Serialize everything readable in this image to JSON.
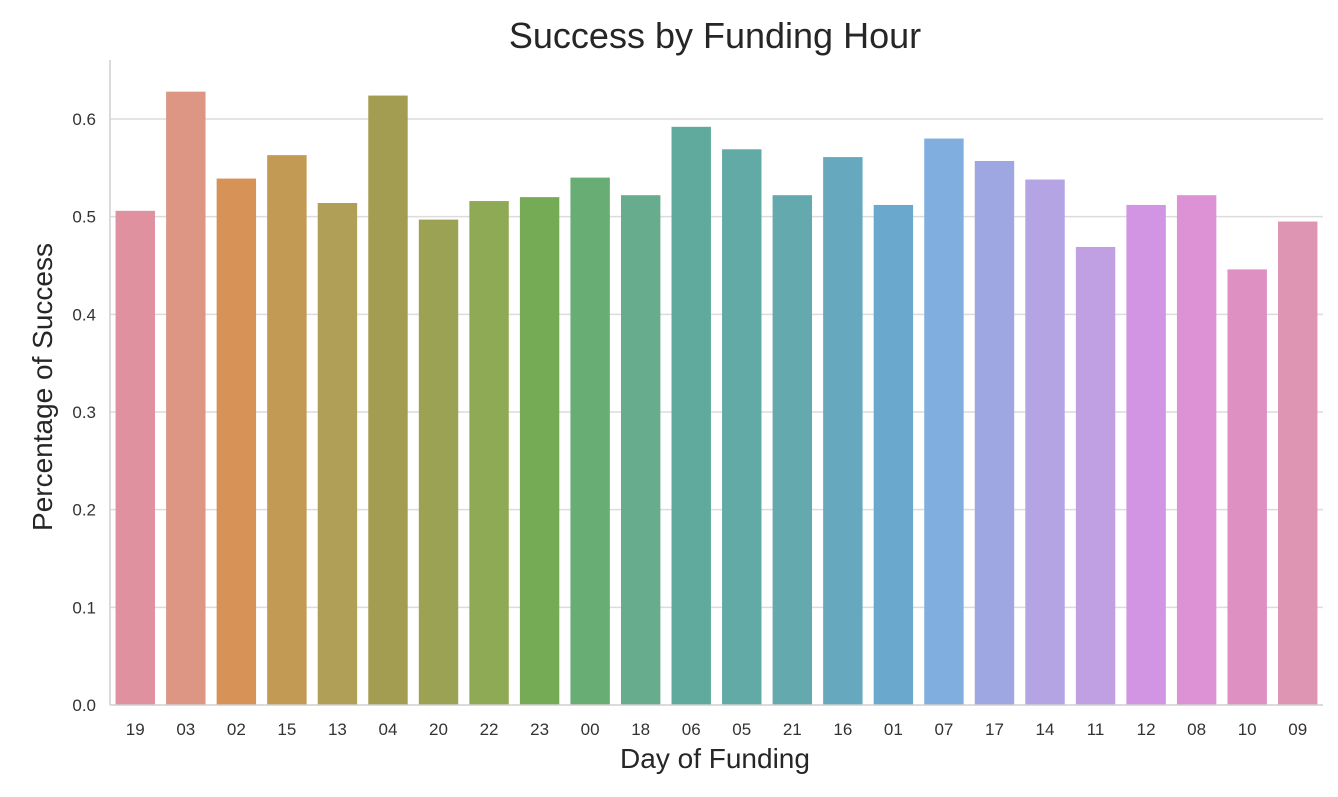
{
  "chart_data": {
    "type": "bar",
    "title": "Success by Funding Hour",
    "xlabel": "Day of Funding",
    "ylabel": "Percentage of Success",
    "ylim": [
      0,
      0.65
    ],
    "yticks": [
      "0.0",
      "0.1",
      "0.2",
      "0.3",
      "0.4",
      "0.5",
      "0.6"
    ],
    "grid": "horizontal",
    "categories": [
      "19",
      "03",
      "02",
      "15",
      "13",
      "04",
      "20",
      "22",
      "23",
      "00",
      "18",
      "06",
      "05",
      "21",
      "16",
      "01",
      "07",
      "17",
      "14",
      "11",
      "12",
      "08",
      "10",
      "09"
    ],
    "values": [
      0.506,
      0.628,
      0.539,
      0.563,
      0.514,
      0.624,
      0.497,
      0.516,
      0.52,
      0.54,
      0.522,
      0.592,
      0.569,
      0.522,
      0.561,
      0.512,
      0.58,
      0.557,
      0.538,
      0.469,
      0.512,
      0.522,
      0.446,
      0.495
    ],
    "colors": [
      "#df919f",
      "#dd9684",
      "#d79257",
      "#c29a53",
      "#b09f57",
      "#a39d51",
      "#9ca253",
      "#8eaa55",
      "#76ab56",
      "#68ad74",
      "#67ad8d",
      "#5fa99d",
      "#62aaa6",
      "#64a9ae",
      "#66a8bd",
      "#6aa9cd",
      "#80aede",
      "#9fa7e2",
      "#b4a4e3",
      "#c09fe3",
      "#d195e3",
      "#dc92d4",
      "#de90c2",
      "#de95b3"
    ]
  }
}
